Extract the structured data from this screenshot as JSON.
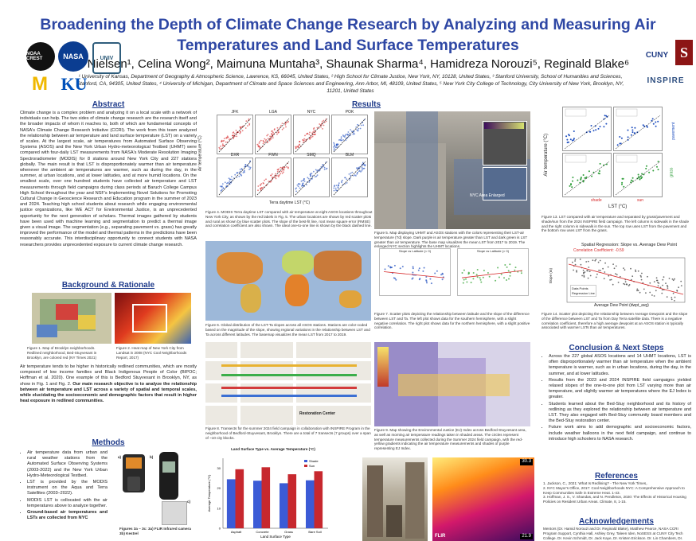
{
  "header": {
    "title": "Broadening the Depth of Climate Change Research by Analyzing and Measuring Air Temperatures and Land Surface Temperatures",
    "authors": "Kip Nielsen¹, Celina Wong², Maimuna Muntaha³, Shaunak Sharma⁴, Hamidreza Norouzi⁵, Reginald Blake⁶",
    "affiliations": "¹ University of Kansas, Department of Geography & Atmospheric Science, Lawrence, KS, 66045, United States, ² High School for Climate Justice, New York, NY, 10128, United States, ³ Stanford University, School of Humanities and Sciences, Stanford, CA, 94305, United States, ⁴ University of Michigan, Department of Climate and Space Sciences and Engineering, Ann Arbor, MI, 48109, United States, ⁵ New York City College of Technology, City University of New York, Brooklyn, NY, 11201, United States"
  },
  "logos": {
    "left": [
      "NOAA CREST",
      "NASA",
      "UNIV"
    ],
    "left_bottom": [
      "M",
      "KU"
    ],
    "right": [
      "CUNY",
      "S",
      "INSPIRE"
    ]
  },
  "abstract": {
    "heading": "Abstract",
    "text": "Climate change is a complex problem and analyzing it on a local scale with a network of individuals can help. The two sides of climate change research are the research itself and the broader impacts of whom it reaches to, both of which are fundamental concepts of NASA's Climate Change Research Initiative (CCRI). The work from this team analyzed the relationship between air temperature and land surface temperature (LST) on a variety of scales. At the largest scale, air temperatures from Automated Surface Observing Systems (ASOS) and the New York Urban Hydro-meteorological Testbed (UHMT) were compared with four-daily LST measurements from NASA's Moderate Resolution Imaging Spectroradiometer (MODIS) for 8 stations around New York City and 227 stations globally. The main result is that LST is disproportionately warmer than air temperature whenever the ambient air temperatures are warmer, such as during the day, in the summer, at urban locations, and at lower latitudes, and at more humid locations. On the smallest scale, over one hundred students have collected air temperature and LST measurements through field campaigns during class periods at Baruch College Campus High School throughout the year and NSF's Implementing Novel Solutions for Promoting Cultural Change in Geoscience Research and Education program in the summer of 2023 and 2024. Teaching high school students about research while engaging environmental justice organizations, like WE ACT for Environmental Justice, is an unprecedented opportunity for the next generation of scholars. Thermal images gathered by students have been used with machine learning and segmentation to predict a thermal image given a visual image. The segmentation (e.g., separating pavement vs. grass) has greatly improved the performance of the model and thermal patterns in the predictions have been reasonably accurate. This interdisciplinary opportunity to connect students with NASA researchers provides unprecedented exposure to current climate change research."
  },
  "background": {
    "heading": "Background & Rationale",
    "fig1_caption": "Figure 1. Map of Brooklyn neighborhoods. Redlined neighborhood, Bed-Stuyvesant in Brooklyn, are colored red (NY Times 2021)",
    "fig2_caption": "Figure 2. Heat map of New York City from Landsat in 2008 (NYC Cool Neighborhoods Report, 2017)",
    "text_a": "Air temperature tends to be higher in historically redlined communities, which are mostly composed of low income families and Black Indigenous People of Color (BIPOC; Hoffman et al. 2020). One example of this is Bedford Stuyvesant in Brooklyn, NY, as show in Fig. 1 and Fig. 2. ",
    "text_b": "Our main research objective is to analyze the relationship between air temperature and LST across a variety of spatial and temporal scales, while elucidating the socioeconomic and demographic factors that result in higher heat exposure in redlined communities."
  },
  "methods": {
    "heading": "Methods",
    "items": [
      "Air temperature data from urban and rural weather stations from the Automated Surface Observing Systems (2003-2022) and the New York Urban Hydro-Meteorological Testbed.",
      "LST is provided by the MODIS instrument on the Aqua and Terra Satellites (2003–2022).",
      "MODIS LST is collocated with the air temperatures above to analyze together.",
      "Ground-based air temperatures and LSTs are collected from NYC"
    ],
    "fig_labels": [
      "a)",
      "b)",
      "c)"
    ],
    "fig_caption": "Figures 3a – 3c: 3a) FLIR Infrared camera 3b) Kestrel"
  },
  "results": {
    "heading": "Results",
    "fig4_panels": [
      "JFK",
      "LGA",
      "NYC",
      "POK",
      "DXR",
      "FWN",
      "SMQ",
      "BLM"
    ],
    "fig4_ylabel": "Air temperature (°C)",
    "fig4_xlabel": "Terra daytime LST (°C)",
    "fig4_caption": "Figure 4. MODIS Terra daytime LST compared with air temperature at eight ASOS locations throughout New York City, as shown by the red labels in Fig. 5. The urban locations are shown by red scatter plots and rural as shown by blue scatter plots. The slope of the best-fit line, root mean square error (RMSE) and correlation coefficient are also shown. The ideal one-to-one line is shown by the black dashed line.",
    "fig5_legend_title": "NYC Area Enlarged",
    "fig5_caption": "Figure 5. Map displaying UHMT and ASOS stations with the colors representing their LST-air temperature (Td) slope. Dark purple is air temperature greater than LST and dark green is LST greater than air temperature. The base map visualizes the mean LST from 2017 to 2019. The enlarged NYC section highlights the UHMT locations.",
    "fig6_caption": "Figure 6. Global distribution of the LST-Ta slopes across all ASOS stations. Stations are color-coded based on the magnitude of the slope, showing regional variations in the relationship between LST and Ta across different latitudes. The basemap visualizes the mean LST from 2017 to 2019.",
    "fig7_titles": [
      "Slope vs Latitude (< 0)",
      "Slope vs Latitude (> 0)"
    ],
    "fig7_caption": "Figure 7. Scatter plots depicting the relationship between latitude and the slope of the difference between LST and Ta. The left plot shows data for the southern hemisphere, with a slight negative correlation. The right plot shows data for the northern hemisphere, with a slight positive correlation.",
    "fig8_caption": "Figure 8. Transects for the summer 2024 field campaign in collaboration with INSPIRE Program in the neighborhood of Bedford-Stuyvesant, Brooklyn. There are a total of 7 transects (7 groups) over a span of ~10 city blocks.",
    "fig8_label": "Restoration Center",
    "fig9_caption": "Figure 9. Map showing the Environmental Justice (EJ) Index across Bedford-Stuyvesant area, as well as morning air temperature readings taken in shaded areas. The circles represent temperature measurements collected during the Summer 2024 field campaign, with the red-yellow gradients indicating the air temperature measurements and shades of purple representing EJ Index.",
    "fig10_title": "Land Surface Type vs. Average Temperature (°C)",
    "fig10_xlabel": "Land Surface Type",
    "fig10_ylabel": "Average Temperature (°C)",
    "thermal_readout_top": "30.3",
    "thermal_readout_bottom": "21.9",
    "thermal_brand": "FLIR",
    "fig13_labels": [
      "pavement",
      "grass",
      "shade",
      "sun"
    ],
    "fig13_ylabel": "Air temperature (°C)",
    "fig13_xlabel": "LST (°C)",
    "fig13_caption": "Figure 13. LST compared with air temperature and separated by grass/pavement and shade/sun from the 2024 INSPIRE field campaign. The left column is sidewalk in the shade and the right column is sidewalk in the sun. The top row uses LST from the pavement and the bottom row uses LST from the grass.",
    "fig14_caption": "Figure 14. Scatter plot depicting the relationship between Average Dewpoint and the slope of the difference between LST and Ta from Day Terra satellite data. There is a negative correlation coefficient, therefore a high average dewpoint at an ASOS station is typically associated with warmer LSTs than air temperatures."
  },
  "chart_data": [
    {
      "type": "bar",
      "title": "Land Surface Type vs. Average Temperature (°C)",
      "xlabel": "Land Surface Type",
      "ylabel": "Average Temperature (°C)",
      "categories": [
        "Asphalt",
        "Concrete",
        "Grass",
        "Bare Soil"
      ],
      "ylim": [
        0,
        35
      ],
      "series": [
        {
          "name": "Shade",
          "values": [
            24.5,
            23.8,
            22.5,
            24.0
          ],
          "color": "#3b5bd6"
        },
        {
          "name": "Sun",
          "values": [
            29.5,
            30.5,
            27.0,
            28.5
          ],
          "color": "#c7282e"
        }
      ]
    },
    {
      "type": "scatter",
      "title": "Spatial Regression: Slope vs. Average Dew Point",
      "annotation": "Correlation Coefficient: -0.59",
      "xlabel": "Average Dew Point (dwpt_avg)",
      "ylabel": "Slope (m)",
      "legend": [
        "Data Points",
        "Regression Line"
      ]
    }
  ],
  "conclusions": {
    "heading": "Conclusion & Next Steps",
    "items": [
      "Across the 227 global ASOS locations and 14 UHMT locations, LST is often disproportionately warmer than air temperature when the ambient temperature is warmer, such as in urban locations, during the day, in the summer, and at lower latitudes.",
      "Results from the 2023 and 2024 INSPIRE field campaigns yielded relaxed slopes of the one-to-one plot from LST varying more than air temperature, and slightly warmer air temperatures where the EJ Index is greater.",
      "Students learned about the Bed-Stuy neighborhood and its history of redlining as they explored the relationship between air temperature and LST. They also engaged with Bed-Stuy community board members and the Bed-Stuy restoration center.",
      "Future work aims to add demographic and socioeconomic factors, include weather balloons in the next field campaign, and continue to introduce high schoolers to NASA research."
    ]
  },
  "references": {
    "heading": "References",
    "items": [
      "1. Jackson, C., 2021: What Is Redlining? - The New York Times,.",
      "2. NYC Mayor's Office, 2017: Cool Neighborhoods NYC: A Comprehensive Approach to Keep Communities Safe in Extreme Heat. 1-43.",
      "3. Hoffman, J. S., V. Shandas, and N. Pendleton, 2020: The Effects of Historical Housing Policies on Resident Urban Areas. Climate, 8, 1-15."
    ]
  },
  "acknowledgements": {
    "heading": "Acknowledgements",
    "text": "Mentors (Dr. Hamid Norouzi and Dr. Reginald Blake), Matthew Pearce, NASA CCRI Program Support, Cynthia Hall, Ashley Grey, Taleen Iden, NoSESS at CUNY City Tech College. Dr. Kevin Schmidt, Dr. Jack Kaye, Dr. Kristen Erickson. Dr. Lin Chambers, Dr."
  },
  "colors": {
    "title": "#2e47a4",
    "heading": "#1e3a8a",
    "urban": "#d62728",
    "rural": "#1f4fbf"
  }
}
